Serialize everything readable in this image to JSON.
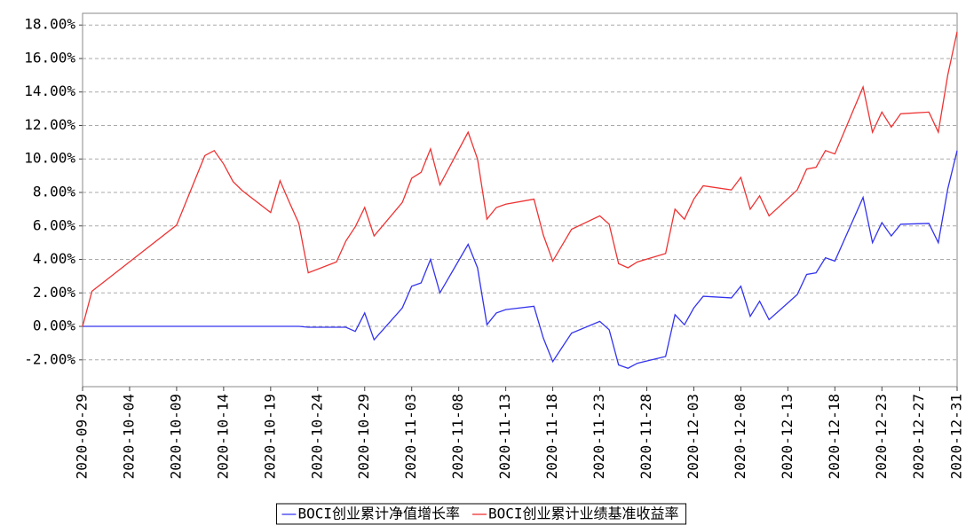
{
  "chart_data": {
    "type": "line",
    "x": [
      "2020-09-29",
      "2020-09-30",
      "2020-10-09",
      "2020-10-12",
      "2020-10-13",
      "2020-10-14",
      "2020-10-15",
      "2020-10-16",
      "2020-10-19",
      "2020-10-20",
      "2020-10-21",
      "2020-10-22",
      "2020-10-23",
      "2020-10-26",
      "2020-10-27",
      "2020-10-28",
      "2020-10-29",
      "2020-10-30",
      "2020-11-02",
      "2020-11-03",
      "2020-11-04",
      "2020-11-05",
      "2020-11-06",
      "2020-11-09",
      "2020-11-10",
      "2020-11-11",
      "2020-11-12",
      "2020-11-13",
      "2020-11-16",
      "2020-11-17",
      "2020-11-18",
      "2020-11-19",
      "2020-11-20",
      "2020-11-23",
      "2020-11-24",
      "2020-11-25",
      "2020-11-26",
      "2020-11-27",
      "2020-11-30",
      "2020-12-01",
      "2020-12-02",
      "2020-12-03",
      "2020-12-04",
      "2020-12-07",
      "2020-12-08",
      "2020-12-09",
      "2020-12-10",
      "2020-12-11",
      "2020-12-14",
      "2020-12-15",
      "2020-12-16",
      "2020-12-17",
      "2020-12-18",
      "2020-12-21",
      "2020-12-22",
      "2020-12-23",
      "2020-12-24",
      "2020-12-25",
      "2020-12-28",
      "2020-12-29",
      "2020-12-30",
      "2020-12-31"
    ],
    "series": [
      {
        "name": "BOCI创业累计净值增长率",
        "color": "#3333ee",
        "values": [
          0,
          0,
          0,
          0,
          0,
          0,
          0,
          0,
          0,
          0,
          0,
          0,
          -0.05,
          -0.05,
          -0.05,
          -0.3,
          0.8,
          -0.8,
          1.1,
          2.4,
          2.6,
          4.0,
          2.0,
          4.9,
          3.5,
          0.1,
          0.8,
          1.0,
          1.2,
          -0.7,
          -2.1,
          -1.25,
          -0.4,
          0.3,
          -0.2,
          -2.3,
          -2.5,
          -2.2,
          -1.8,
          0.7,
          0.1,
          1.1,
          1.8,
          1.7,
          2.4,
          0.6,
          1.5,
          0.4,
          1.9,
          3.1,
          3.2,
          4.1,
          3.9,
          7.7,
          5.0,
          6.2,
          5.4,
          6.1,
          6.15,
          5.0,
          8.2,
          10.5
        ]
      },
      {
        "name": "BOCI创业累计业绩基准收益率",
        "color": "#ee3333",
        "values": [
          0,
          2.1,
          6.05,
          10.2,
          10.5,
          9.7,
          8.65,
          8.1,
          6.8,
          8.7,
          7.4,
          6.15,
          3.2,
          3.85,
          5.1,
          5.95,
          7.1,
          5.4,
          7.4,
          8.85,
          9.2,
          10.6,
          8.45,
          11.6,
          10.0,
          6.4,
          7.1,
          7.3,
          7.6,
          5.45,
          3.9,
          4.85,
          5.8,
          6.6,
          6.1,
          3.75,
          3.5,
          3.85,
          4.35,
          7.0,
          6.4,
          7.6,
          8.4,
          8.15,
          8.9,
          7.0,
          7.8,
          6.6,
          8.15,
          9.4,
          9.5,
          10.5,
          10.3,
          14.3,
          11.6,
          12.8,
          11.9,
          12.7,
          12.8,
          11.6,
          15.0,
          17.6
        ]
      }
    ],
    "xlim": [
      "2020-09-29",
      "2020-12-31"
    ],
    "xticks": [
      "2020-09-29",
      "2020-10-04",
      "2020-10-09",
      "2020-10-14",
      "2020-10-19",
      "2020-10-24",
      "2020-10-29",
      "2020-11-03",
      "2020-11-08",
      "2020-11-13",
      "2020-11-18",
      "2020-11-23",
      "2020-11-28",
      "2020-12-03",
      "2020-12-08",
      "2020-12-13",
      "2020-12-18",
      "2020-12-23",
      "2020-12-27",
      "2020-12-31"
    ],
    "ylim": [
      -3.6,
      18.7
    ],
    "yticks": [
      {
        "value": -2,
        "label": "-2.00%"
      },
      {
        "value": 0,
        "label": "0.00%"
      },
      {
        "value": 2,
        "label": "2.00%"
      },
      {
        "value": 4,
        "label": "4.00%"
      },
      {
        "value": 6,
        "label": "6.00%"
      },
      {
        "value": 8,
        "label": "8.00%"
      },
      {
        "value": 10,
        "label": "10.00%"
      },
      {
        "value": 12,
        "label": "12.00%"
      },
      {
        "value": 14,
        "label": "14.00%"
      },
      {
        "value": 16,
        "label": "16.00%"
      },
      {
        "value": 18,
        "label": "18.00%"
      }
    ],
    "grid": true,
    "legend": "bottom"
  }
}
